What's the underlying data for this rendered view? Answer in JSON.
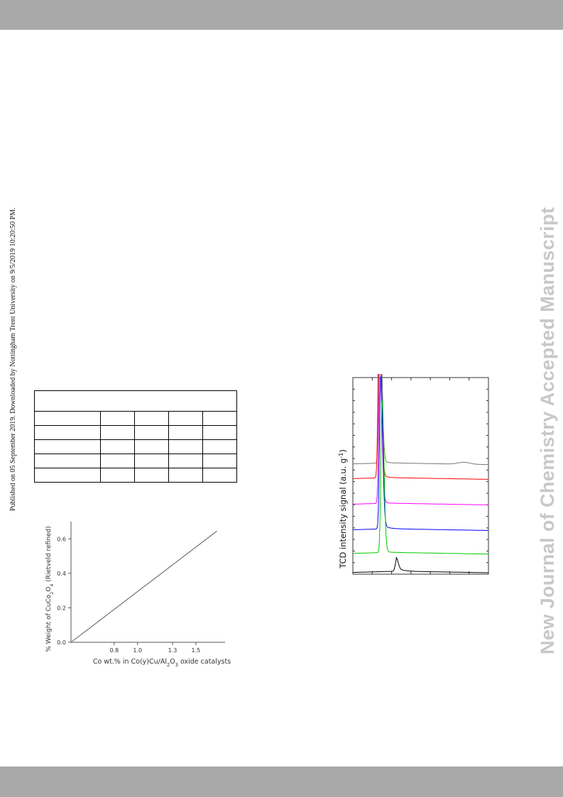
{
  "header_band": "",
  "published_note": "Published on 05 September 2019. Downloaded by Nottingham Trent University on 9/5/2019 10:20:50 PM.",
  "side_banner": "New Journal of Chemistry Accepted Manuscript",
  "table": {
    "columns": 5,
    "rows": [
      [
        "",
        "",
        "",
        "",
        ""
      ],
      [
        "",
        "",
        "",
        "",
        ""
      ],
      [
        "",
        "",
        "",
        "",
        ""
      ],
      [
        "",
        "",
        "",
        "",
        ""
      ],
      [
        "",
        "",
        "",
        "",
        ""
      ],
      [
        "",
        "",
        "",
        "",
        ""
      ]
    ]
  },
  "chart_data": [
    {
      "type": "line",
      "title": "",
      "xlabel": "Co wt.% in Co(y)Cu/Al2O3 oxide catalysts",
      "ylabel": "% Weight of CuCo2O4 (Rietveld refined)",
      "x_ticks": [
        "0.8",
        "1.0",
        "1.3",
        "1.5"
      ],
      "y_ticks": [
        "0.0",
        "0.2",
        "0.4",
        "0.6"
      ],
      "xlim": [
        0.43,
        1.75
      ],
      "ylim": [
        0.0,
        0.7
      ],
      "grid": false,
      "series": [
        {
          "x": [
            0.43,
            1.68
          ],
          "y": [
            0.0,
            0.645
          ],
          "color": "#666666"
        }
      ]
    },
    {
      "type": "line",
      "title": "",
      "ylabel": "TCD intensity signal (a.u. g-1)",
      "grid": false,
      "series": [
        {
          "color": "#777777",
          "baseline": 0.565,
          "peak_x": 0.2,
          "peak_h": 0.83,
          "tail": 0.015,
          "bump": 0.01
        },
        {
          "color": "#ff0000",
          "baseline": 0.49,
          "peak_x": 0.195,
          "peak_h": 0.89,
          "tail": 0.02,
          "bump": 0.0
        },
        {
          "color": "#ff00ff",
          "baseline": 0.36,
          "peak_x": 0.2,
          "peak_h": 0.73,
          "tail": 0.01,
          "bump": 0.0
        },
        {
          "color": "#0000ff",
          "baseline": 0.23,
          "peak_x": 0.205,
          "peak_h": 0.77,
          "tail": 0.03,
          "bump": 0.0
        },
        {
          "color": "#00cc00",
          "baseline": 0.11,
          "peak_x": 0.215,
          "peak_h": 0.77,
          "tail": 0.01,
          "bump": 0.0
        },
        {
          "color": "#000000",
          "baseline": 0.015,
          "peak_x": 0.32,
          "peak_h": 0.05,
          "tail": 0.02,
          "bump": 0.0
        }
      ]
    }
  ]
}
